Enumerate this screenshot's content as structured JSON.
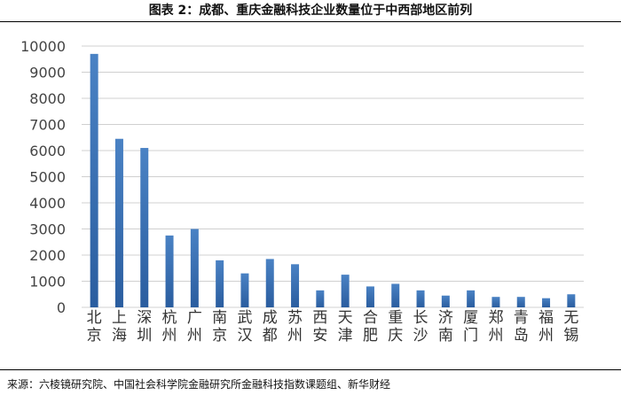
{
  "figure": {
    "title": "图表 2：成都、重庆金融科技企业数量位于中西部地区前列",
    "source": "来源：六棱镜研究院、中国社会科学院金融研究所金融科技指数课题组、新华财经"
  },
  "colors": {
    "bar_top": "#4a82c4",
    "bar_bottom": "#2a5d9f",
    "grid": "#d0d0d0",
    "axis_text": "#444444"
  },
  "chart_data": {
    "type": "bar",
    "categories": [
      "北京",
      "上海",
      "深圳",
      "杭州",
      "广州",
      "南京",
      "武汉",
      "成都",
      "苏州",
      "西安",
      "天津",
      "合肥",
      "重庆",
      "长沙",
      "济南",
      "厦门",
      "郑州",
      "青岛",
      "福州",
      "无锡"
    ],
    "values": [
      9700,
      6450,
      6100,
      2750,
      3000,
      1800,
      1300,
      1850,
      1650,
      650,
      1250,
      800,
      900,
      650,
      450,
      650,
      400,
      400,
      350,
      500
    ],
    "ylim": [
      0,
      10000
    ],
    "yticks": [
      0,
      1000,
      2000,
      3000,
      4000,
      5000,
      6000,
      7000,
      8000,
      9000,
      10000
    ],
    "grid": true,
    "legend": "none"
  }
}
